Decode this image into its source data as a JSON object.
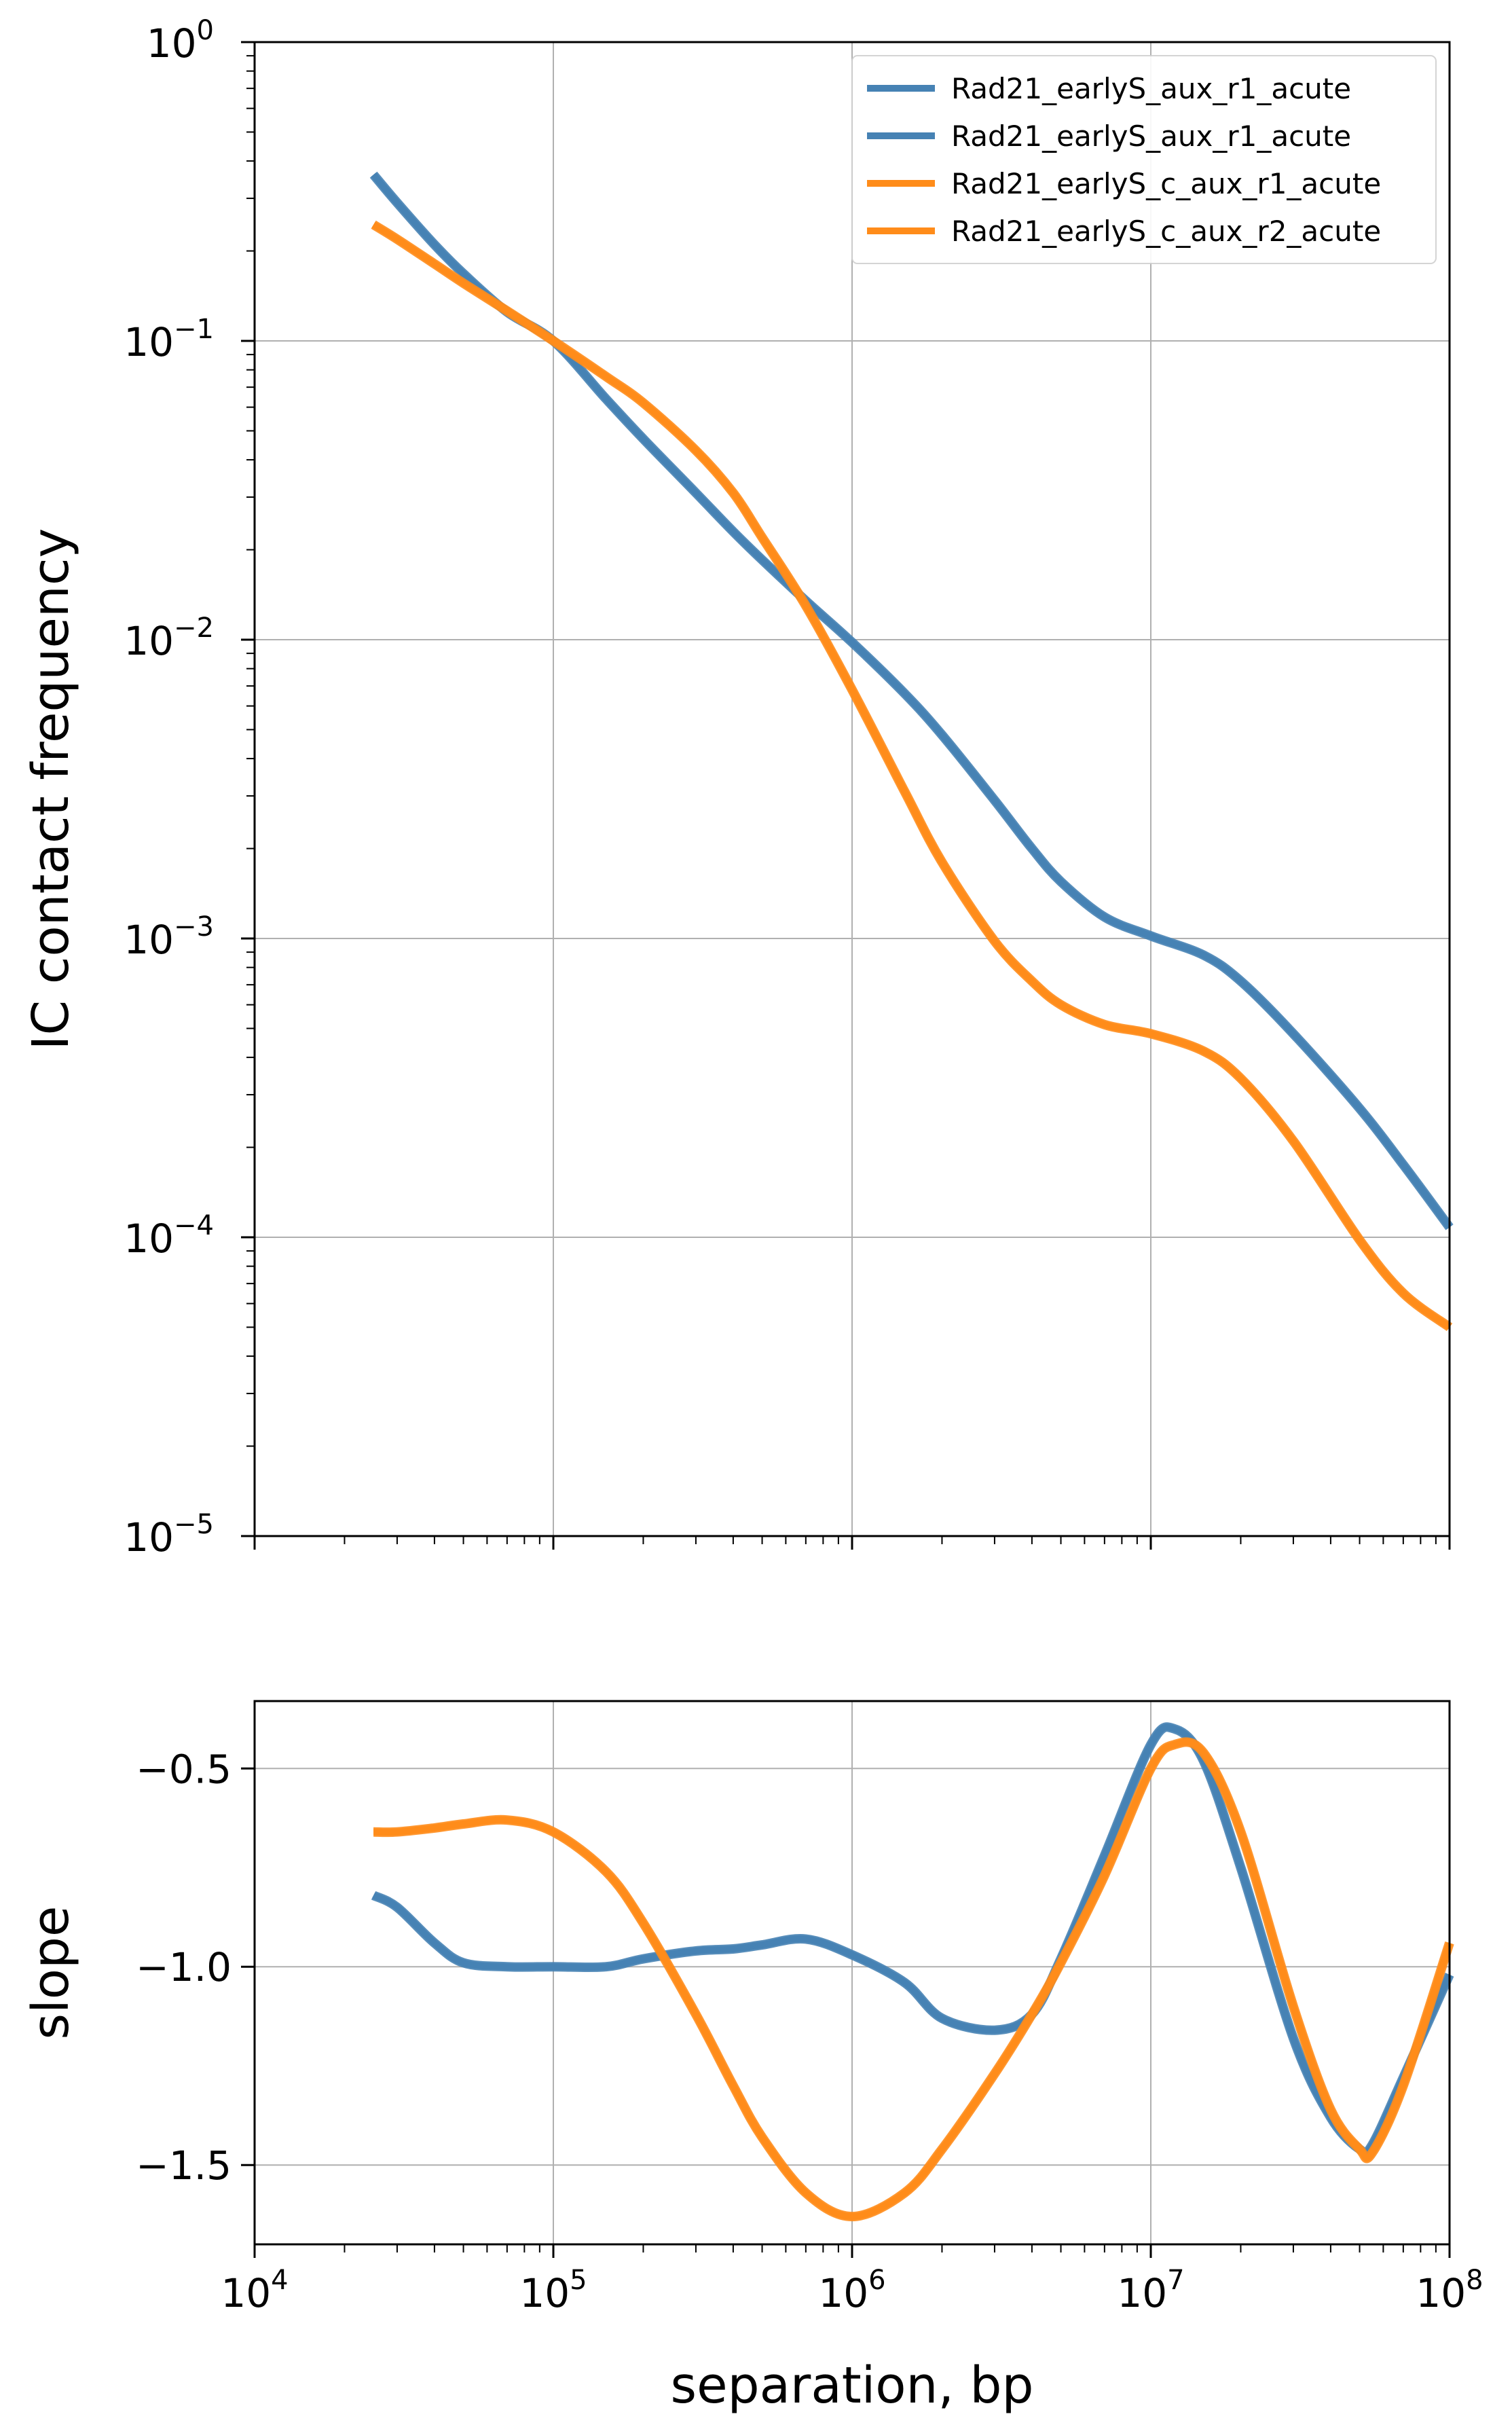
{
  "colors": {
    "blue": "#4682b4",
    "orange": "#ff8c1a",
    "grid": "#b0b0b0",
    "axis": "#000000",
    "background": "#ffffff"
  },
  "chart_data": [
    {
      "type": "line",
      "panel": "contact-frequency",
      "title": "",
      "xlabel": "",
      "ylabel": "IC contact frequency",
      "xscale": "log",
      "yscale": "log",
      "xlim": [
        10000,
        100000000
      ],
      "ylim": [
        1e-05,
        1
      ],
      "grid": true,
      "legend": "top-right",
      "xticks": [
        {
          "value": 10000,
          "base": "",
          "exp": ""
        },
        {
          "value": 100000,
          "base": "",
          "exp": ""
        },
        {
          "value": 1000000,
          "base": "",
          "exp": ""
        },
        {
          "value": 10000000,
          "base": "",
          "exp": ""
        },
        {
          "value": 100000000,
          "base": "",
          "exp": ""
        }
      ],
      "yticks": [
        {
          "value": 1,
          "base": "10",
          "exp": "0"
        },
        {
          "value": 0.1,
          "base": "10",
          "exp": "−1"
        },
        {
          "value": 0.01,
          "base": "10",
          "exp": "−2"
        },
        {
          "value": 0.001,
          "base": "10",
          "exp": "−3"
        },
        {
          "value": 0.0001,
          "base": "10",
          "exp": "−4"
        },
        {
          "value": 1e-05,
          "base": "10",
          "exp": "−5"
        }
      ],
      "x": [
        25000,
        30000,
        40000,
        50000,
        70000,
        100000,
        150000,
        200000,
        300000,
        400000,
        500000,
        700000,
        1000000,
        1500000,
        2000000,
        3000000,
        4000000,
        5000000,
        7000000,
        10000000,
        15000000,
        20000000,
        30000000,
        50000000,
        70000000,
        100000000
      ],
      "series": [
        {
          "name": "Rad21_earlyS_aux_r1_acute",
          "color": "#4682b4",
          "values": [
            0.36,
            0.29,
            0.21,
            0.168,
            0.125,
            0.1,
            0.064,
            0.047,
            0.031,
            0.023,
            0.0185,
            0.0135,
            0.0098,
            0.0066,
            0.0048,
            0.0029,
            0.002,
            0.00155,
            0.00118,
            0.00102,
            0.00088,
            0.00072,
            0.00048,
            0.00027,
            0.000175,
            0.000108
          ]
        },
        {
          "name": "Rad21_earlyS_aux_r1_acute",
          "color": "#4682b4",
          "values": [
            0.36,
            0.29,
            0.21,
            0.168,
            0.125,
            0.1,
            0.064,
            0.047,
            0.031,
            0.023,
            0.0185,
            0.0135,
            0.0098,
            0.0066,
            0.0048,
            0.0029,
            0.002,
            0.00155,
            0.00118,
            0.00102,
            0.00088,
            0.00072,
            0.00048,
            0.00027,
            0.000175,
            0.000108
          ]
        },
        {
          "name": "Rad21_earlyS_c_aux_r1_acute",
          "color": "#ff8c1a",
          "values": [
            0.245,
            0.219,
            0.181,
            0.156,
            0.126,
            0.1,
            0.076,
            0.062,
            0.043,
            0.031,
            0.022,
            0.013,
            0.0068,
            0.0031,
            0.0018,
            0.00098,
            0.00072,
            0.0006,
            0.000515,
            0.00048,
            0.00042,
            0.00034,
            0.00021,
            9.8e-05,
            6.5e-05,
            5e-05
          ]
        },
        {
          "name": "Rad21_earlyS_c_aux_r2_acute",
          "color": "#ff8c1a",
          "values": [
            0.245,
            0.219,
            0.181,
            0.156,
            0.126,
            0.1,
            0.076,
            0.062,
            0.043,
            0.031,
            0.022,
            0.013,
            0.0068,
            0.0031,
            0.0018,
            0.00098,
            0.00072,
            0.0006,
            0.000515,
            0.00048,
            0.00042,
            0.00034,
            0.00021,
            9.8e-05,
            6.5e-05,
            5e-05
          ]
        }
      ]
    },
    {
      "type": "line",
      "panel": "slope",
      "title": "",
      "xlabel": "separation, bp",
      "ylabel": "slope",
      "xscale": "log",
      "yscale": "linear",
      "xlim": [
        10000,
        100000000
      ],
      "ylim": [
        -1.7,
        -0.33
      ],
      "grid": true,
      "xticks": [
        {
          "value": 10000,
          "base": "10",
          "exp": "4"
        },
        {
          "value": 100000,
          "base": "10",
          "exp": "5"
        },
        {
          "value": 1000000,
          "base": "10",
          "exp": "6"
        },
        {
          "value": 10000000,
          "base": "10",
          "exp": "7"
        },
        {
          "value": 100000000,
          "base": "10",
          "exp": "8"
        }
      ],
      "yticks": [
        {
          "value": -0.5,
          "label": "−0.5"
        },
        {
          "value": -1.0,
          "label": "−1.0"
        },
        {
          "value": -1.5,
          "label": "−1.5"
        }
      ],
      "series": [
        {
          "name": "Rad21_earlyS_aux_r1_acute",
          "color": "#4682b4",
          "x": [
            25000,
            30000,
            40000,
            50000,
            70000,
            100000,
            150000,
            200000,
            300000,
            400000,
            500000,
            700000,
            1000000,
            1500000,
            2000000,
            3000000,
            4000000,
            5000000,
            7000000,
            10000000,
            12000000,
            15000000,
            20000000,
            30000000,
            40000000,
            50000000,
            55000000,
            70000000,
            100000000
          ],
          "values": [
            -0.82,
            -0.85,
            -0.94,
            -0.99,
            -1.0,
            -1.0,
            -1.0,
            -0.98,
            -0.96,
            -0.955,
            -0.945,
            -0.93,
            -0.97,
            -1.04,
            -1.13,
            -1.16,
            -1.12,
            -0.98,
            -0.72,
            -0.44,
            -0.4,
            -0.48,
            -0.75,
            -1.18,
            -1.38,
            -1.46,
            -1.45,
            -1.28,
            -1.02
          ]
        },
        {
          "name": "Rad21_earlyS_aux_r1_acute",
          "color": "#4682b4",
          "x": [
            25000,
            30000,
            40000,
            50000,
            70000,
            100000,
            150000,
            200000,
            300000,
            400000,
            500000,
            700000,
            1000000,
            1500000,
            2000000,
            3000000,
            4000000,
            5000000,
            7000000,
            10000000,
            12000000,
            15000000,
            20000000,
            30000000,
            40000000,
            50000000,
            55000000,
            70000000,
            100000000
          ],
          "values": [
            -0.82,
            -0.85,
            -0.94,
            -0.99,
            -1.0,
            -1.0,
            -1.0,
            -0.98,
            -0.96,
            -0.955,
            -0.945,
            -0.93,
            -0.97,
            -1.04,
            -1.13,
            -1.16,
            -1.12,
            -0.98,
            -0.72,
            -0.44,
            -0.4,
            -0.48,
            -0.75,
            -1.18,
            -1.38,
            -1.46,
            -1.45,
            -1.28,
            -1.02
          ]
        },
        {
          "name": "Rad21_earlyS_c_aux_r1_acute",
          "color": "#ff8c1a",
          "x": [
            25000,
            30000,
            40000,
            50000,
            70000,
            100000,
            150000,
            200000,
            300000,
            400000,
            500000,
            700000,
            1000000,
            1500000,
            2000000,
            3000000,
            4000000,
            5000000,
            7000000,
            10000000,
            12000000,
            15000000,
            20000000,
            30000000,
            40000000,
            50000000,
            55000000,
            70000000,
            100000000
          ],
          "values": [
            -0.66,
            -0.66,
            -0.65,
            -0.64,
            -0.63,
            -0.66,
            -0.76,
            -0.89,
            -1.12,
            -1.3,
            -1.43,
            -1.57,
            -1.63,
            -1.57,
            -1.46,
            -1.27,
            -1.12,
            -0.99,
            -0.77,
            -0.5,
            -0.44,
            -0.46,
            -0.66,
            -1.1,
            -1.36,
            -1.46,
            -1.47,
            -1.3,
            -0.94
          ]
        },
        {
          "name": "Rad21_earlyS_c_aux_r2_acute",
          "color": "#ff8c1a",
          "x": [
            25000,
            30000,
            40000,
            50000,
            70000,
            100000,
            150000,
            200000,
            300000,
            400000,
            500000,
            700000,
            1000000,
            1500000,
            2000000,
            3000000,
            4000000,
            5000000,
            7000000,
            10000000,
            12000000,
            15000000,
            20000000,
            30000000,
            40000000,
            50000000,
            55000000,
            70000000,
            100000000
          ],
          "values": [
            -0.66,
            -0.66,
            -0.65,
            -0.64,
            -0.63,
            -0.66,
            -0.76,
            -0.89,
            -1.12,
            -1.3,
            -1.43,
            -1.57,
            -1.63,
            -1.57,
            -1.46,
            -1.27,
            -1.12,
            -0.99,
            -0.77,
            -0.5,
            -0.44,
            -0.46,
            -0.66,
            -1.1,
            -1.36,
            -1.46,
            -1.47,
            -1.3,
            -0.94
          ]
        }
      ]
    }
  ]
}
